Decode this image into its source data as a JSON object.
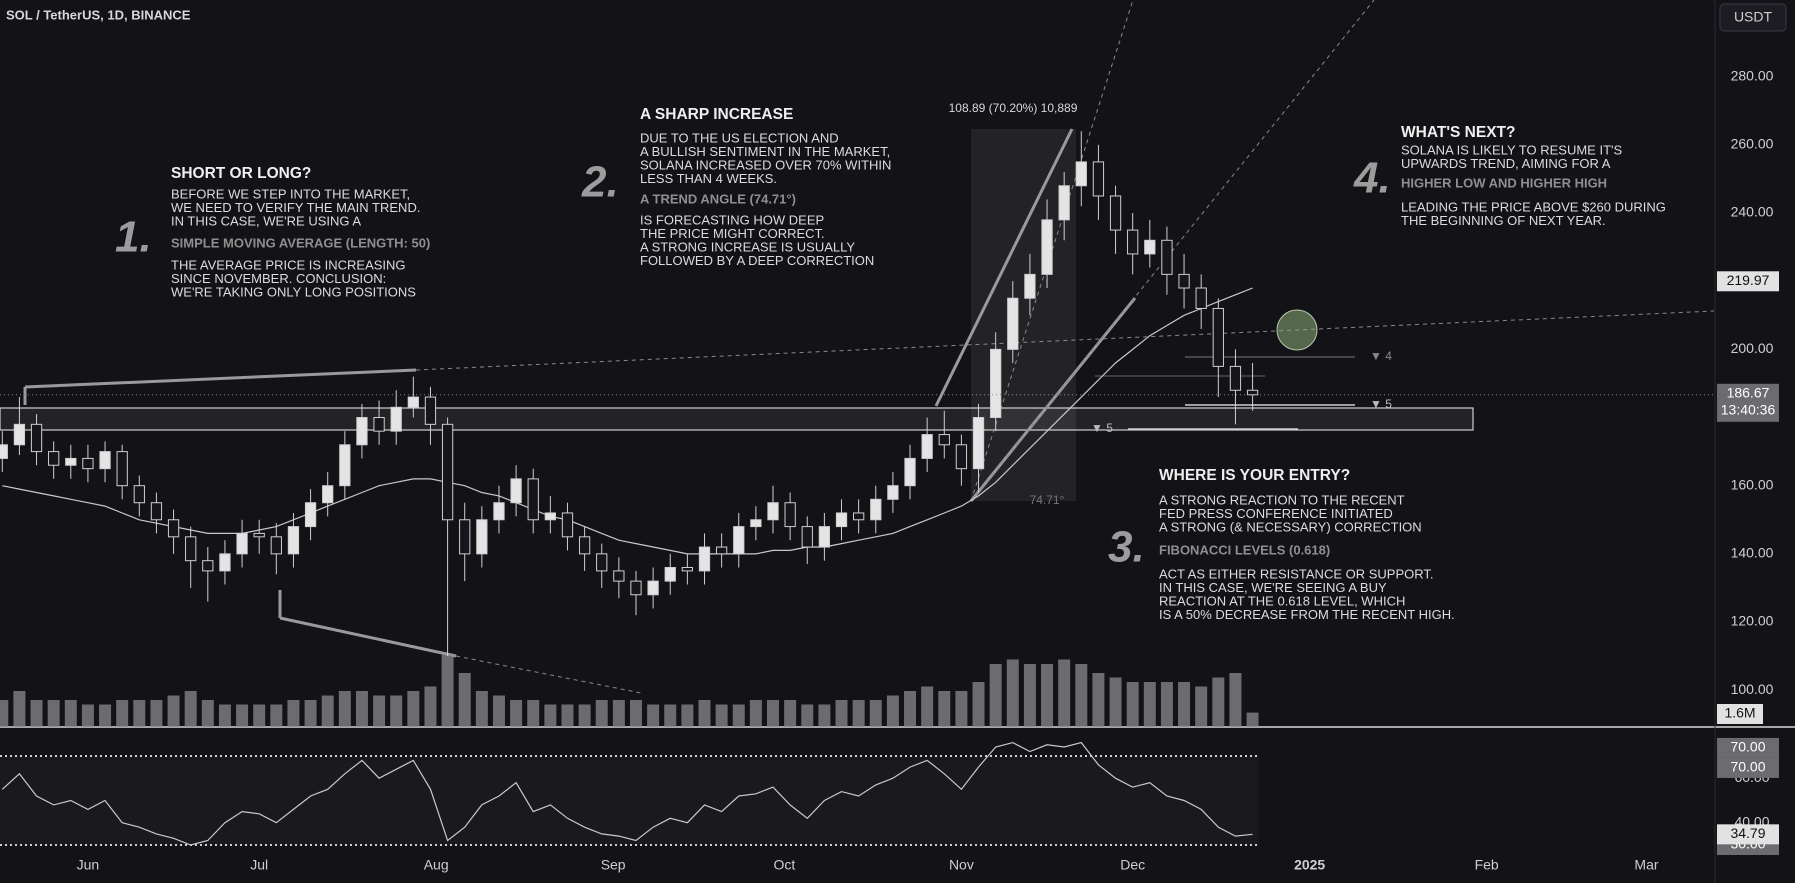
{
  "header": {
    "symbol": "SOL / TetherUS, 1D, BINANCE",
    "currency": "USDT"
  },
  "chart_data": {
    "type": "candlestick",
    "x": [
      -15,
      -12,
      -9,
      -6,
      -3,
      0,
      3,
      6,
      9,
      12,
      15,
      18,
      21,
      24,
      27,
      30,
      33,
      36,
      39,
      42,
      45,
      48,
      51,
      54,
      57,
      60,
      63,
      66,
      69,
      72,
      75,
      78,
      81,
      84,
      87,
      90,
      93,
      96,
      99,
      102,
      105,
      108,
      111,
      114,
      117,
      120,
      123,
      126,
      129,
      132,
      135,
      138,
      141,
      144,
      147,
      150,
      153,
      156,
      159,
      162,
      165,
      168,
      171,
      174,
      177,
      180,
      183,
      186,
      189,
      192,
      195,
      198,
      201,
      204
    ],
    "open": [
      168,
      172,
      178,
      170,
      166,
      168,
      165,
      170,
      160,
      155,
      150,
      145,
      138,
      135,
      140,
      146,
      145,
      140,
      148,
      155,
      160,
      172,
      180,
      176,
      183,
      186,
      178,
      150,
      140,
      150,
      155,
      162,
      150,
      152,
      145,
      140,
      135,
      132,
      128,
      132,
      136,
      135,
      142,
      140,
      148,
      150,
      155,
      148,
      142,
      148,
      152,
      150,
      156,
      160,
      168,
      175,
      172,
      165,
      180,
      200,
      215,
      222,
      238,
      248,
      255,
      245,
      235,
      228,
      232,
      222,
      218,
      212,
      195,
      188
    ],
    "high": [
      176,
      186,
      181,
      173,
      172,
      172,
      173,
      172,
      163,
      158,
      153,
      148,
      142,
      144,
      150,
      150,
      149,
      152,
      159,
      164,
      176,
      184,
      185,
      188,
      192,
      189,
      180,
      155,
      154,
      160,
      166,
      165,
      157,
      155,
      148,
      143,
      139,
      135,
      136,
      140,
      140,
      146,
      146,
      152,
      154,
      160,
      158,
      151,
      152,
      156,
      156,
      160,
      164,
      172,
      180,
      182,
      175,
      184,
      205,
      220,
      228,
      244,
      252,
      264,
      260,
      248,
      240,
      238,
      236,
      228,
      222,
      215,
      200,
      196
    ],
    "low": [
      164,
      169,
      166,
      162,
      162,
      161,
      161,
      156,
      151,
      146,
      140,
      130,
      126,
      131,
      136,
      140,
      134,
      136,
      144,
      151,
      156,
      168,
      172,
      172,
      180,
      172,
      110,
      132,
      136,
      146,
      151,
      146,
      146,
      141,
      135,
      130,
      127,
      122,
      124,
      128,
      131,
      131,
      136,
      136,
      144,
      146,
      144,
      137,
      138,
      144,
      146,
      146,
      152,
      156,
      164,
      168,
      160,
      158,
      176,
      196,
      210,
      218,
      232,
      242,
      238,
      228,
      222,
      224,
      216,
      212,
      206,
      186,
      178,
      182
    ],
    "close": [
      172,
      178,
      170,
      166,
      168,
      165,
      170,
      160,
      155,
      150,
      145,
      138,
      135,
      140,
      146,
      145,
      140,
      148,
      155,
      160,
      172,
      180,
      176,
      183,
      186,
      178,
      150,
      140,
      150,
      155,
      162,
      150,
      152,
      145,
      140,
      135,
      132,
      128,
      132,
      136,
      135,
      142,
      140,
      148,
      150,
      155,
      148,
      142,
      148,
      152,
      150,
      156,
      160,
      168,
      175,
      172,
      165,
      180,
      200,
      215,
      222,
      238,
      248,
      255,
      245,
      235,
      228,
      232,
      222,
      218,
      212,
      195,
      188,
      186.67
    ],
    "sma": [
      160,
      159,
      158,
      157,
      156,
      155,
      154,
      152,
      150,
      149,
      148,
      147,
      146,
      146,
      146,
      147,
      148,
      150,
      152,
      154,
      156,
      158,
      160,
      161,
      162,
      162,
      161,
      160,
      158,
      157,
      155,
      153,
      151,
      150,
      148,
      146,
      144,
      143,
      142,
      141,
      140,
      140,
      140,
      140,
      140,
      141,
      141,
      142,
      142,
      143,
      144,
      145,
      146,
      148,
      150,
      152,
      154,
      157,
      161,
      166,
      171,
      176,
      181,
      186,
      191,
      196,
      200,
      204,
      207,
      210,
      212,
      214,
      216,
      218
    ],
    "volume": [
      3,
      4,
      3,
      3,
      3,
      2.5,
      2.5,
      3,
      3,
      3,
      3.5,
      4,
      3,
      2.5,
      2.5,
      2.5,
      2.5,
      3,
      3,
      3.5,
      4,
      4,
      3.5,
      3.5,
      4,
      4.5,
      8,
      6,
      4,
      3.5,
      3,
      3,
      2.5,
      2.5,
      2.5,
      3,
      3,
      3,
      2.5,
      2.5,
      2.5,
      3,
      2.5,
      2.5,
      3,
      3,
      3,
      2.5,
      2.5,
      3,
      3,
      3,
      3.5,
      4,
      4.5,
      4,
      4,
      5,
      7,
      7.5,
      7,
      7,
      7.5,
      7,
      6,
      5.5,
      5,
      5,
      5,
      5,
      4.5,
      5.5,
      6,
      1.6
    ],
    "volume_label": "1.6M",
    "rsi": [
      55,
      62,
      52,
      48,
      50,
      46,
      50,
      40,
      38,
      35,
      33,
      30,
      32,
      40,
      45,
      44,
      40,
      46,
      52,
      55,
      62,
      68,
      60,
      64,
      68,
      55,
      32,
      38,
      48,
      52,
      58,
      45,
      48,
      42,
      38,
      35,
      34,
      32,
      38,
      42,
      40,
      48,
      45,
      52,
      53,
      56,
      48,
      42,
      50,
      54,
      52,
      57,
      60,
      65,
      68,
      62,
      55,
      65,
      74,
      76,
      72,
      75,
      74,
      76,
      66,
      60,
      56,
      58,
      52,
      50,
      46,
      38,
      34,
      34.79
    ],
    "xlim": [
      -15.4,
      285
    ],
    "xticks": [
      {
        "value": 0,
        "label": "Jun"
      },
      {
        "value": 30,
        "label": "Jul"
      },
      {
        "value": 61,
        "label": "Aug"
      },
      {
        "value": 92,
        "label": "Sep"
      },
      {
        "value": 122,
        "label": "Oct"
      },
      {
        "value": 153,
        "label": "Nov"
      },
      {
        "value": 183,
        "label": "Dec"
      },
      {
        "value": 214,
        "label": "2025"
      },
      {
        "value": 245,
        "label": "Feb"
      },
      {
        "value": 273,
        "label": "Mar"
      }
    ],
    "ylim": [
      89.2,
      302.5
    ],
    "yticks": [
      {
        "value": 100,
        "label": "100.00"
      },
      {
        "value": 120,
        "label": "120.00"
      },
      {
        "value": 140,
        "label": "140.00"
      },
      {
        "value": 160,
        "label": "160.00"
      },
      {
        "value": 200,
        "label": "200.00"
      },
      {
        "value": 240,
        "label": "240.00"
      },
      {
        "value": 260,
        "label": "260.00"
      },
      {
        "value": 280,
        "label": "280.00"
      }
    ],
    "volume_ylim": [
      0,
      10
    ],
    "rsi_ylim": [
      27.75,
      83
    ],
    "rsi_yticks": [
      {
        "value": 60,
        "label": "60.00"
      },
      {
        "value": 40,
        "label": "40.00"
      }
    ],
    "rsi_levels": [
      {
        "value": 70,
        "label": "70.00"
      },
      {
        "value": 30,
        "label": "30.00"
      }
    ],
    "rsi_ma_label": {
      "value": 70,
      "label": "70.00"
    },
    "price_marker": 219.97,
    "countdown": "13:40:36",
    "up_color": "#e4e4e4",
    "down_color": "#15151b",
    "line_color": "#c9c9c9",
    "volume_color": "#8a8a8f"
  },
  "annotations": {
    "notes": [
      {
        "number": "1.",
        "title": "SHORT OR LONG?",
        "lines": [
          "BEFORE WE STEP INTO THE MARKET,",
          "WE NEED TO VERIFY THE MAIN TREND.",
          "IN THIS CASE, WE'RE USING A"
        ],
        "highlight": "SIMPLE MOVING AVERAGE (LENGTH: 50)",
        "lines2": [
          "THE AVERAGE PRICE IS INCREASING",
          "SINCE NOVEMBER. CONCLUSION:",
          "WE'RE TAKING ONLY LONG POSITIONS"
        ]
      },
      {
        "number": "2.",
        "title": "A SHARP INCREASE",
        "lines": [
          "DUE TO THE US ELECTION AND",
          "A BULLISH SENTIMENT IN THE MARKET,",
          "SOLANA INCREASED OVER 70% WITHIN",
          "LESS THAN 4 WEEKS."
        ],
        "highlight": "A TREND ANGLE (74.71°)",
        "lines2": [
          "IS FORECASTING HOW DEEP",
          "THE PRICE MIGHT CORRECT.",
          "A STRONG INCREASE IS USUALLY",
          "FOLLOWED BY A DEEP CORRECTION"
        ]
      },
      {
        "number": "3.",
        "title": "WHERE IS YOUR ENTRY?",
        "lines": [
          "A STRONG REACTION TO THE RECENT",
          "FED PRESS CONFERENCE INITIATED",
          "A STRONG (& NECESSARY) CORRECTION"
        ],
        "highlight": "FIBONACCI LEVELS (0.618)",
        "lines2": [
          "ACT AS EITHER RESISTANCE OR SUPPORT.",
          "IN THIS CASE, WE'RE SEEING A BUY",
          "REACTION AT THE 0.618 LEVEL, WHICH",
          "IS A 50% DECREASE FROM THE RECENT HIGH."
        ]
      },
      {
        "number": "4.",
        "title": "WHAT'S NEXT?",
        "lines": [
          "SOLANA IS LIKELY TO RESUME IT'S",
          "UPWARDS TREND, AIMING FOR A"
        ],
        "highlight": "HIGHER LOW AND HIGHER HIGH",
        "lines2": [
          "LEADING THE PRICE ABOVE $260 DURING",
          "THE BEGINNING OF NEXT YEAR."
        ]
      }
    ],
    "measure": "108.89 (70.20%) 10,889",
    "angle": "74.71°",
    "fib_marks": [
      "▼ 4",
      "▼ 5",
      "▼ 5"
    ]
  }
}
